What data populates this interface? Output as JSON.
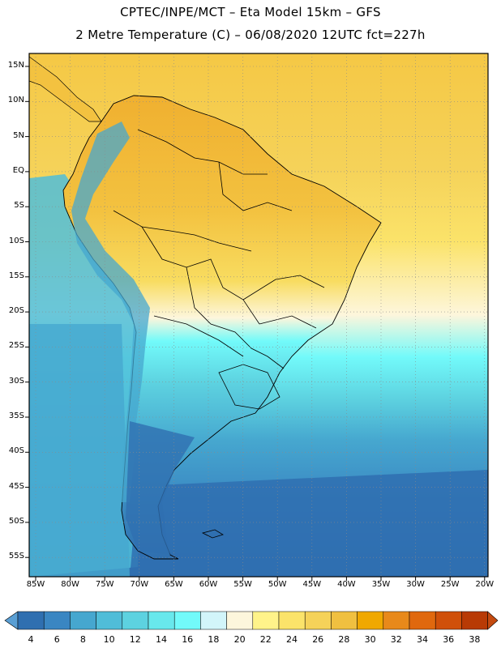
{
  "title_line1": "CPTEC/INPE/MCT –  Eta Model 15km – GFS",
  "title_line2": "2 Metre Temperature (C) – 06/08/2020 12UTC fct=227h",
  "lat_labels": [
    "15N",
    "10N",
    "5N",
    "EQ",
    "5S",
    "10S",
    "15S",
    "20S",
    "25S",
    "30S",
    "35S",
    "40S",
    "45S",
    "50S",
    "55S"
  ],
  "lon_labels": [
    "85W",
    "80W",
    "75W",
    "70W",
    "65W",
    "60W",
    "55W",
    "50W",
    "45W",
    "40W",
    "35W",
    "30W",
    "25W",
    "20W"
  ],
  "colorbar": {
    "labels": [
      "4",
      "6",
      "8",
      "10",
      "12",
      "14",
      "16",
      "18",
      "20",
      "22",
      "24",
      "26",
      "28",
      "30",
      "32",
      "34",
      "36",
      "38"
    ],
    "colors": [
      "#5a9fd4",
      "#2f6fb0",
      "#3a86c2",
      "#46a7cf",
      "#50bdd8",
      "#5dd2e0",
      "#68e8ec",
      "#72fafa",
      "#d2f5fa",
      "#fdf6dc",
      "#fff38a",
      "#fbe36a",
      "#f5d259",
      "#f0c040",
      "#f0a800",
      "#e8891a",
      "#e0680e",
      "#d0500a",
      "#b83a05",
      "#c44a10"
    ]
  },
  "map_colors": {
    "ocean_warm": "#f5d259",
    "ocean_cool": "#46a7cf",
    "ocean_cold": "#2f6fb0",
    "land_warm": "#f5c845",
    "land_cold": "#3a86c2",
    "border": "#000000"
  }
}
